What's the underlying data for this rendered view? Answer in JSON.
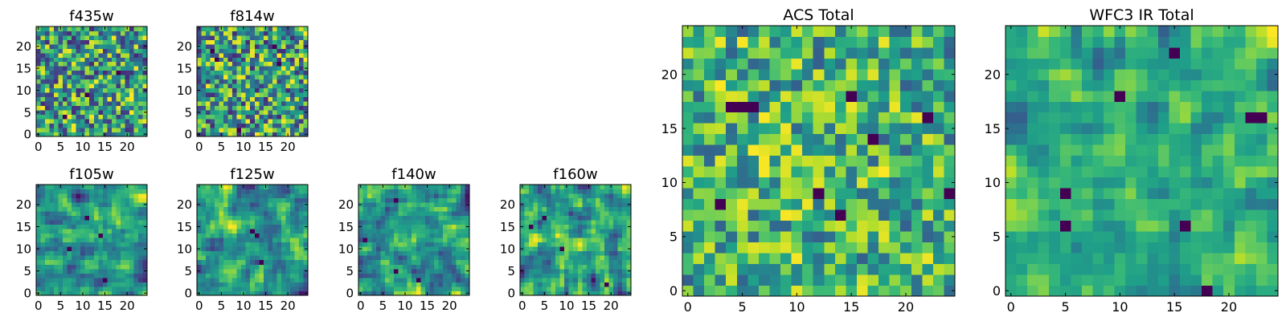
{
  "chart_data": [
    {
      "type": "heatmap",
      "title": "f435w",
      "xlabel": "",
      "ylabel": "",
      "xlim": [
        -0.5,
        24.5
      ],
      "ylim": [
        -0.5,
        24.5
      ],
      "xticks": [
        0,
        5,
        10,
        15,
        20
      ],
      "yticks": [
        0,
        5,
        10,
        15,
        20
      ],
      "colormap": "viridis",
      "rows": 25,
      "cols": 25,
      "seed": 11,
      "smooth": 0,
      "floor": 0.12,
      "hotspots": [
        [
          9,
          11
        ],
        [
          14,
          18
        ],
        [
          4,
          6
        ]
      ]
    },
    {
      "type": "heatmap",
      "title": "f814w",
      "xlabel": "",
      "ylabel": "",
      "xlim": [
        -0.5,
        24.5
      ],
      "ylim": [
        -0.5,
        24.5
      ],
      "xticks": [
        0,
        5,
        10,
        15,
        20
      ],
      "yticks": [
        0,
        5,
        10,
        15,
        20
      ],
      "colormap": "viridis",
      "rows": 25,
      "cols": 25,
      "seed": 23,
      "smooth": 0,
      "floor": 0.12,
      "hotspots": [
        [
          17,
          4
        ],
        [
          19,
          3
        ],
        [
          20,
          17
        ],
        [
          16,
          18
        ],
        [
          1,
          9
        ]
      ]
    },
    {
      "type": "heatmap",
      "title": "f105w",
      "xlabel": "",
      "ylabel": "",
      "xlim": [
        -0.5,
        24.5
      ],
      "ylim": [
        -0.5,
        24.5
      ],
      "xticks": [
        0,
        5,
        10,
        15,
        20
      ],
      "yticks": [
        0,
        5,
        10,
        15,
        20
      ],
      "colormap": "viridis",
      "rows": 25,
      "cols": 25,
      "seed": 37,
      "smooth": 1,
      "floor": 0.05,
      "hotspots": [
        [
          17,
          11
        ],
        [
          13,
          14
        ],
        [
          10,
          7
        ],
        [
          3,
          15
        ]
      ]
    },
    {
      "type": "heatmap",
      "title": "f125w",
      "xlabel": "",
      "ylabel": "",
      "xlim": [
        -0.5,
        24.5
      ],
      "ylim": [
        -0.5,
        24.5
      ],
      "xticks": [
        0,
        5,
        10,
        15,
        20
      ],
      "yticks": [
        0,
        5,
        10,
        15,
        20
      ],
      "colormap": "viridis",
      "rows": 25,
      "cols": 25,
      "seed": 41,
      "smooth": 1,
      "floor": 0.05,
      "hotspots": [
        [
          14,
          12
        ],
        [
          13,
          13
        ],
        [
          7,
          14
        ]
      ]
    },
    {
      "type": "heatmap",
      "title": "f140w",
      "xlabel": "",
      "ylabel": "",
      "xlim": [
        -0.5,
        24.5
      ],
      "ylim": [
        -0.5,
        24.5
      ],
      "xticks": [
        0,
        5,
        10,
        15,
        20
      ],
      "yticks": [
        0,
        5,
        10,
        15,
        20
      ],
      "colormap": "viridis",
      "rows": 25,
      "cols": 25,
      "seed": 53,
      "smooth": 1,
      "floor": 0.05,
      "hotspots": [
        [
          21,
          8
        ],
        [
          5,
          8
        ],
        [
          3,
          13
        ],
        [
          12,
          1
        ]
      ]
    },
    {
      "type": "heatmap",
      "title": "f160w",
      "xlabel": "",
      "ylabel": "",
      "xlim": [
        -0.5,
        24.5
      ],
      "ylim": [
        -0.5,
        24.5
      ],
      "xticks": [
        0,
        5,
        10,
        15,
        20
      ],
      "yticks": [
        0,
        5,
        10,
        15,
        20
      ],
      "colormap": "viridis",
      "rows": 25,
      "cols": 25,
      "seed": 67,
      "smooth": 1,
      "floor": 0.05,
      "hotspots": [
        [
          17,
          5
        ],
        [
          15,
          2
        ],
        [
          2,
          19
        ],
        [
          10,
          9
        ]
      ]
    },
    {
      "type": "heatmap",
      "title": "ACS Total",
      "xlabel": "",
      "ylabel": "",
      "xlim": [
        -0.5,
        24.5
      ],
      "ylim": [
        -0.5,
        24.5
      ],
      "xticks": [
        0,
        5,
        10,
        15,
        20
      ],
      "yticks": [
        0,
        5,
        10,
        15,
        20
      ],
      "colormap": "viridis",
      "rows": 25,
      "cols": 25,
      "seed": 71,
      "smooth": 0,
      "floor": 0.3,
      "hotspots": [
        [
          17,
          4
        ],
        [
          17,
          5
        ],
        [
          17,
          6
        ],
        [
          18,
          15
        ],
        [
          14,
          17
        ],
        [
          8,
          3
        ],
        [
          9,
          12
        ],
        [
          7,
          14
        ],
        [
          9,
          24
        ],
        [
          16,
          22
        ]
      ]
    },
    {
      "type": "heatmap",
      "title": "WFC3 IR Total",
      "xlabel": "",
      "ylabel": "",
      "xlim": [
        -0.5,
        24.5
      ],
      "ylim": [
        -0.5,
        24.5
      ],
      "xticks": [
        0,
        5,
        10,
        15,
        20
      ],
      "yticks": [
        0,
        5,
        10,
        15,
        20
      ],
      "colormap": "viridis",
      "rows": 25,
      "cols": 25,
      "seed": 89,
      "smooth": 1,
      "floor": 0.3,
      "hotspots": [
        [
          22,
          15
        ],
        [
          18,
          10
        ],
        [
          16,
          22
        ],
        [
          16,
          23
        ],
        [
          9,
          5
        ],
        [
          6,
          5
        ],
        [
          6,
          16
        ],
        [
          0,
          18
        ]
      ]
    }
  ]
}
